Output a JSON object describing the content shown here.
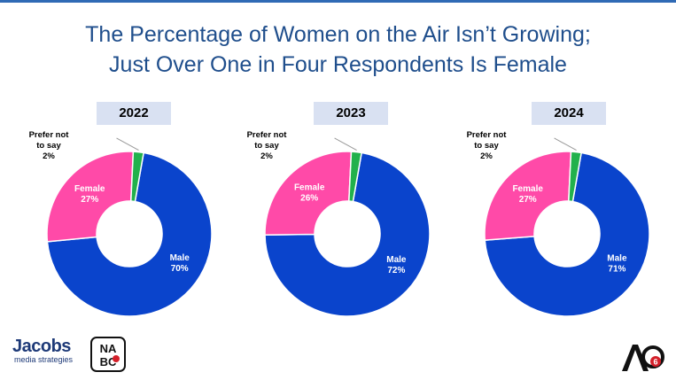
{
  "title": {
    "line1": "The Percentage of Women on the Air Isn’t Growing;",
    "line2": "Just Over One in Four Respondents Is Female"
  },
  "colors": {
    "title": "#1f4e8c",
    "male": "#0a44cc",
    "female": "#ff4aa8",
    "prefer_not": "#22b14c",
    "year_box": "#d9e1f2"
  },
  "chart_data": [
    {
      "type": "pie",
      "title": "2022",
      "categories": [
        "Male",
        "Female",
        "Prefer not to say"
      ],
      "values": [
        70,
        27,
        2
      ],
      "labels": [
        "70%",
        "27%",
        "2%"
      ]
    },
    {
      "type": "pie",
      "title": "2023",
      "categories": [
        "Male",
        "Female",
        "Prefer not to say"
      ],
      "values": [
        72,
        26,
        2
      ],
      "labels": [
        "72%",
        "26%",
        "2%"
      ]
    },
    {
      "type": "pie",
      "title": "2024",
      "categories": [
        "Male",
        "Female",
        "Prefer not to say"
      ],
      "values": [
        71,
        27,
        2
      ],
      "labels": [
        "71%",
        "27%",
        "2%"
      ]
    }
  ],
  "logos": {
    "jacobs_name": "Jacobs",
    "jacobs_sub": "media strategies",
    "nabc_text": "NABC",
    "aq_text": "AQ",
    "aq_number": "6"
  }
}
